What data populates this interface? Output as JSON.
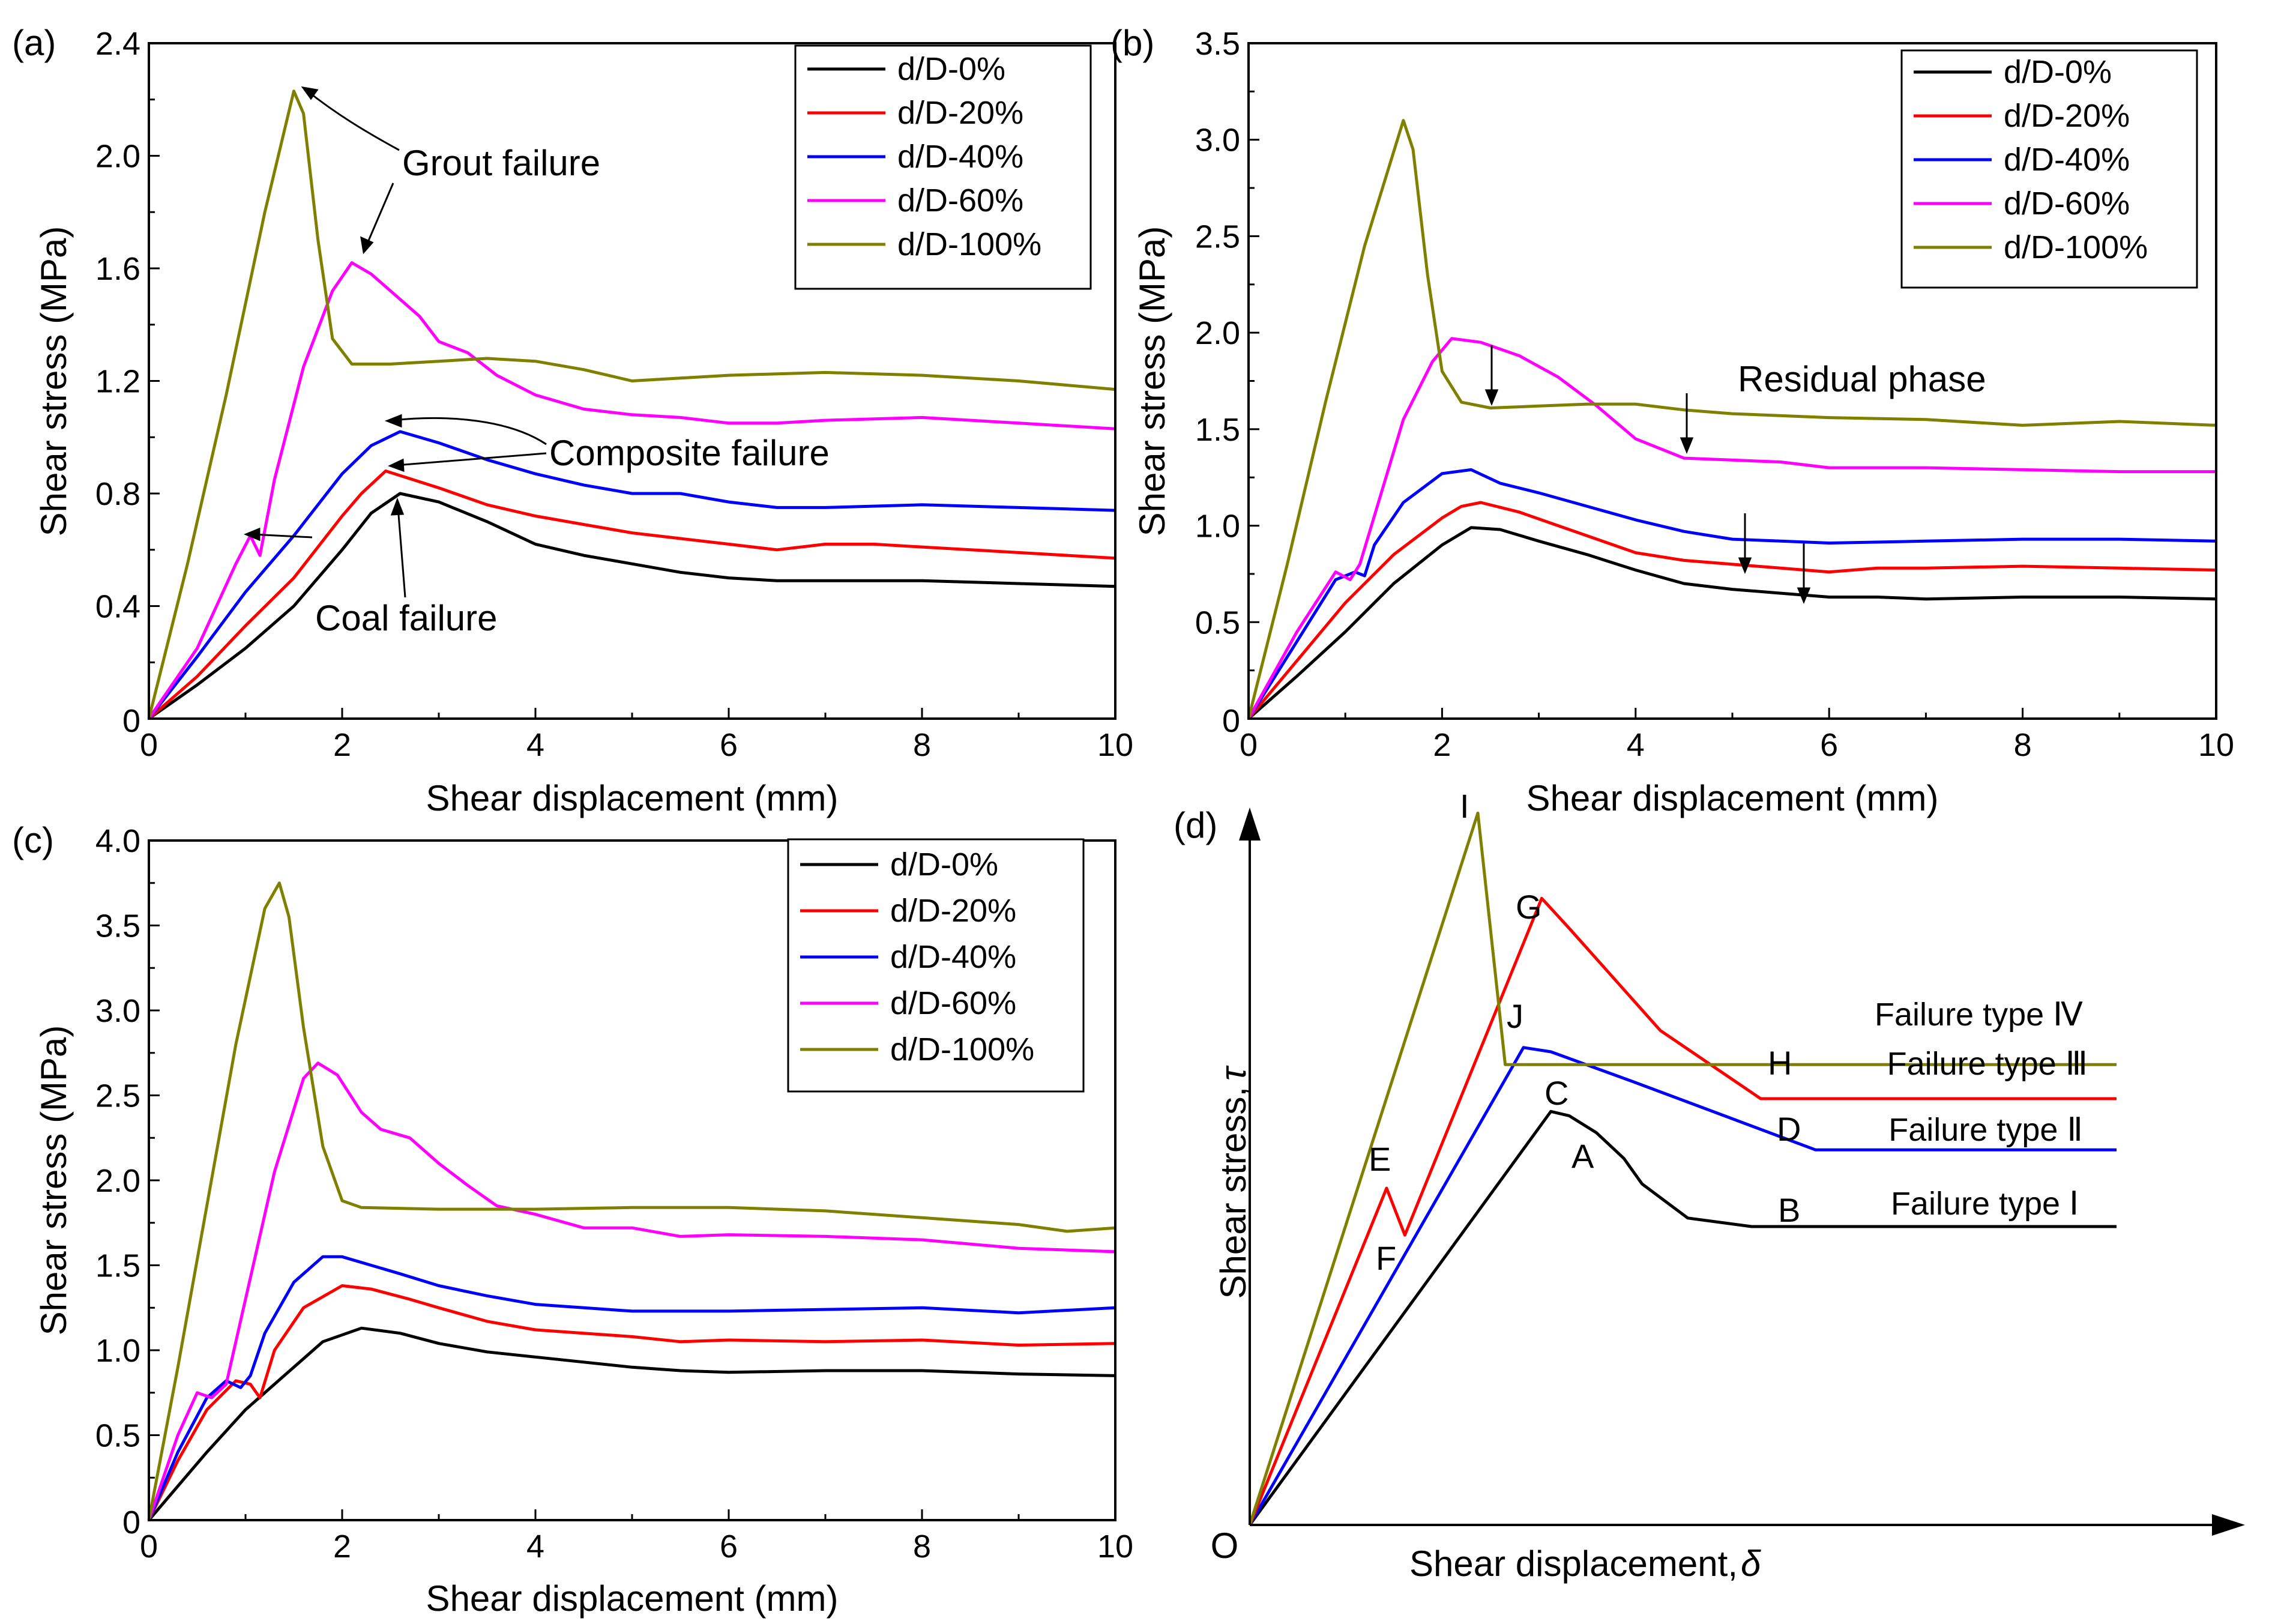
{
  "chart_data": [
    {
      "type": "line",
      "panel_label": "(a)",
      "xlabel": "Shear displacement (mm)",
      "ylabel": "Shear stress (MPa)",
      "xlim": [
        0,
        10
      ],
      "ylim": [
        0,
        2.4
      ],
      "xticks": [
        0,
        2,
        4,
        6,
        8,
        10
      ],
      "yticks": [
        0.4,
        0.8,
        1.2,
        1.6,
        2.0,
        2.4
      ],
      "grid": false,
      "legend_position": "top-right",
      "series": [
        {
          "name": "d/D-0%",
          "color": "#000000",
          "x": [
            0,
            0.5,
            1,
            1.5,
            2,
            2.3,
            2.6,
            3,
            3.5,
            4,
            4.5,
            5,
            5.5,
            6,
            6.5,
            7,
            8,
            9,
            10
          ],
          "y": [
            0,
            0.12,
            0.25,
            0.4,
            0.6,
            0.73,
            0.8,
            0.77,
            0.7,
            0.62,
            0.58,
            0.55,
            0.52,
            0.5,
            0.49,
            0.49,
            0.49,
            0.48,
            0.47
          ]
        },
        {
          "name": "d/D-20%",
          "color": "#ff0000",
          "x": [
            0,
            0.5,
            1,
            1.5,
            2,
            2.2,
            2.45,
            3,
            3.5,
            4,
            4.5,
            5,
            5.5,
            6,
            6.5,
            7,
            7.5,
            8,
            9,
            10
          ],
          "y": [
            0,
            0.15,
            0.33,
            0.5,
            0.72,
            0.8,
            0.88,
            0.82,
            0.76,
            0.72,
            0.69,
            0.66,
            0.64,
            0.62,
            0.6,
            0.62,
            0.62,
            0.61,
            0.59,
            0.57
          ]
        },
        {
          "name": "d/D-40%",
          "color": "#0000ff",
          "x": [
            0,
            0.5,
            1,
            1.5,
            2,
            2.3,
            2.6,
            3,
            3.5,
            4,
            4.5,
            5,
            5.5,
            6,
            6.5,
            7,
            8,
            9,
            10
          ],
          "y": [
            0,
            0.22,
            0.45,
            0.65,
            0.87,
            0.97,
            1.02,
            0.98,
            0.92,
            0.87,
            0.83,
            0.8,
            0.8,
            0.77,
            0.75,
            0.75,
            0.76,
            0.75,
            0.74
          ]
        },
        {
          "name": "d/D-60%",
          "color": "#ff00ff",
          "x": [
            0,
            0.5,
            0.9,
            1.05,
            1.15,
            1.3,
            1.6,
            1.9,
            2.1,
            2.3,
            2.5,
            2.8,
            3,
            3.3,
            3.6,
            4,
            4.5,
            5,
            5.5,
            6,
            6.5,
            7,
            8,
            9,
            10
          ],
          "y": [
            0,
            0.25,
            0.55,
            0.65,
            0.58,
            0.85,
            1.25,
            1.52,
            1.62,
            1.58,
            1.52,
            1.43,
            1.34,
            1.3,
            1.22,
            1.15,
            1.1,
            1.08,
            1.07,
            1.05,
            1.05,
            1.06,
            1.07,
            1.05,
            1.03
          ]
        },
        {
          "name": "d/D-100%",
          "color": "#808000",
          "x": [
            0,
            0.4,
            0.8,
            1.2,
            1.5,
            1.6,
            1.75,
            1.9,
            2.1,
            2.5,
            3,
            3.5,
            4,
            4.5,
            5,
            5.5,
            6,
            7,
            8,
            9,
            10
          ],
          "y": [
            0,
            0.55,
            1.15,
            1.8,
            2.23,
            2.15,
            1.7,
            1.35,
            1.26,
            1.26,
            1.27,
            1.28,
            1.27,
            1.24,
            1.2,
            1.21,
            1.22,
            1.23,
            1.22,
            1.2,
            1.17
          ]
        }
      ],
      "annotations": [
        "Grout failure",
        "Composite failure",
        "Coal failure"
      ]
    },
    {
      "type": "line",
      "panel_label": "(b)",
      "xlabel": "Shear displacement (mm)",
      "ylabel": "Shear stress (MPa)",
      "xlim": [
        0,
        10
      ],
      "ylim": [
        0,
        3.5
      ],
      "xticks": [
        0,
        2,
        4,
        6,
        8,
        10
      ],
      "yticks": [
        0.5,
        1.0,
        1.5,
        2.0,
        2.5,
        3.0,
        3.5
      ],
      "grid": false,
      "legend_position": "top-right",
      "series": [
        {
          "name": "d/D-0%",
          "color": "#000000",
          "x": [
            0,
            0.5,
            1,
            1.5,
            2,
            2.3,
            2.6,
            3,
            3.5,
            4,
            4.5,
            5,
            5.5,
            6,
            6.5,
            7,
            8,
            9,
            10
          ],
          "y": [
            0,
            0.22,
            0.45,
            0.7,
            0.9,
            0.99,
            0.98,
            0.92,
            0.85,
            0.77,
            0.7,
            0.67,
            0.65,
            0.63,
            0.63,
            0.62,
            0.63,
            0.63,
            0.62
          ]
        },
        {
          "name": "d/D-20%",
          "color": "#ff0000",
          "x": [
            0,
            0.5,
            1,
            1.5,
            2,
            2.2,
            2.4,
            2.8,
            3.2,
            3.6,
            4,
            4.5,
            5,
            5.5,
            6,
            6.5,
            7,
            8,
            9,
            10
          ],
          "y": [
            0,
            0.3,
            0.6,
            0.85,
            1.04,
            1.1,
            1.12,
            1.07,
            1.0,
            0.93,
            0.86,
            0.82,
            0.8,
            0.78,
            0.76,
            0.78,
            0.78,
            0.79,
            0.78,
            0.77
          ]
        },
        {
          "name": "d/D-40%",
          "color": "#0000ff",
          "x": [
            0,
            0.5,
            0.9,
            1.1,
            1.2,
            1.3,
            1.6,
            2,
            2.3,
            2.6,
            3,
            3.5,
            4,
            4.5,
            5,
            5.5,
            6,
            7,
            8,
            9,
            10
          ],
          "y": [
            0,
            0.4,
            0.72,
            0.76,
            0.74,
            0.9,
            1.12,
            1.27,
            1.29,
            1.22,
            1.17,
            1.1,
            1.03,
            0.97,
            0.93,
            0.92,
            0.91,
            0.92,
            0.93,
            0.93,
            0.92
          ]
        },
        {
          "name": "d/D-60%",
          "color": "#ff00ff",
          "x": [
            0,
            0.5,
            0.9,
            1.05,
            1.15,
            1.3,
            1.6,
            1.9,
            2.1,
            2.4,
            2.8,
            3.2,
            3.6,
            4,
            4.5,
            5,
            5.5,
            6,
            7,
            8,
            9,
            10
          ],
          "y": [
            0,
            0.45,
            0.76,
            0.72,
            0.8,
            1.05,
            1.55,
            1.85,
            1.97,
            1.95,
            1.88,
            1.77,
            1.62,
            1.45,
            1.35,
            1.34,
            1.33,
            1.3,
            1.3,
            1.29,
            1.28,
            1.28
          ]
        },
        {
          "name": "d/D-100%",
          "color": "#808000",
          "x": [
            0,
            0.4,
            0.8,
            1.2,
            1.6,
            1.7,
            1.85,
            2,
            2.2,
            2.5,
            3,
            3.5,
            4,
            4.5,
            5,
            6,
            7,
            8,
            9,
            10
          ],
          "y": [
            0,
            0.8,
            1.65,
            2.45,
            3.1,
            2.95,
            2.3,
            1.8,
            1.64,
            1.61,
            1.62,
            1.63,
            1.63,
            1.6,
            1.58,
            1.56,
            1.55,
            1.52,
            1.54,
            1.52
          ]
        }
      ],
      "annotations": [
        "Residual phase"
      ]
    },
    {
      "type": "line",
      "panel_label": "(c)",
      "xlabel": "Shear displacement (mm)",
      "ylabel": "Shear stress (MPa)",
      "xlim": [
        0,
        10
      ],
      "ylim": [
        0,
        4.0
      ],
      "xticks": [
        0,
        2,
        4,
        6,
        8,
        10
      ],
      "yticks": [
        0.5,
        1.0,
        1.5,
        2.0,
        2.5,
        3.0,
        3.5,
        4.0
      ],
      "grid": false,
      "legend_position": "top-right",
      "series": [
        {
          "name": "d/D-0%",
          "color": "#000000",
          "x": [
            0,
            0.3,
            0.6,
            1,
            1.4,
            1.8,
            2.2,
            2.6,
            3,
            3.5,
            4,
            4.5,
            5,
            5.5,
            6,
            7,
            8,
            9,
            10
          ],
          "y": [
            0,
            0.2,
            0.4,
            0.65,
            0.85,
            1.05,
            1.13,
            1.1,
            1.04,
            0.99,
            0.96,
            0.93,
            0.9,
            0.88,
            0.87,
            0.88,
            0.88,
            0.86,
            0.85
          ]
        },
        {
          "name": "d/D-20%",
          "color": "#ff0000",
          "x": [
            0,
            0.3,
            0.6,
            0.9,
            1.05,
            1.15,
            1.3,
            1.6,
            2,
            2.3,
            2.7,
            3,
            3.5,
            4,
            4.5,
            5,
            5.5,
            6,
            7,
            8,
            9,
            10
          ],
          "y": [
            0,
            0.35,
            0.65,
            0.82,
            0.8,
            0.72,
            1.0,
            1.25,
            1.38,
            1.36,
            1.3,
            1.25,
            1.17,
            1.12,
            1.1,
            1.08,
            1.05,
            1.06,
            1.05,
            1.06,
            1.03,
            1.04
          ]
        },
        {
          "name": "d/D-40%",
          "color": "#0000ff",
          "x": [
            0,
            0.3,
            0.6,
            0.8,
            0.95,
            1.05,
            1.2,
            1.5,
            1.8,
            2,
            2.3,
            2.6,
            3,
            3.5,
            4,
            4.5,
            5,
            6,
            7,
            8,
            9,
            10
          ],
          "y": [
            0,
            0.4,
            0.72,
            0.82,
            0.78,
            0.85,
            1.1,
            1.4,
            1.55,
            1.55,
            1.5,
            1.45,
            1.38,
            1.32,
            1.27,
            1.25,
            1.23,
            1.23,
            1.24,
            1.25,
            1.22,
            1.25
          ]
        },
        {
          "name": "d/D-60%",
          "color": "#ff00ff",
          "x": [
            0,
            0.3,
            0.5,
            0.65,
            0.8,
            1,
            1.3,
            1.6,
            1.75,
            1.95,
            2.2,
            2.4,
            2.7,
            3,
            3.3,
            3.6,
            4,
            4.5,
            5,
            5.5,
            6,
            7,
            8,
            9,
            10
          ],
          "y": [
            0,
            0.5,
            0.75,
            0.72,
            0.8,
            1.3,
            2.05,
            2.6,
            2.69,
            2.62,
            2.4,
            2.3,
            2.25,
            2.1,
            1.97,
            1.85,
            1.8,
            1.72,
            1.72,
            1.67,
            1.68,
            1.67,
            1.65,
            1.6,
            1.58
          ]
        },
        {
          "name": "d/D-100%",
          "color": "#808000",
          "x": [
            0,
            0.3,
            0.6,
            0.9,
            1.2,
            1.35,
            1.45,
            1.6,
            1.8,
            2,
            2.2,
            3,
            4,
            5,
            6,
            7,
            8,
            9,
            9.5,
            10
          ],
          "y": [
            0,
            0.9,
            1.85,
            2.8,
            3.6,
            3.75,
            3.55,
            2.9,
            2.2,
            1.88,
            1.84,
            1.83,
            1.83,
            1.84,
            1.84,
            1.82,
            1.78,
            1.74,
            1.7,
            1.72
          ]
        }
      ]
    },
    {
      "type": "line",
      "panel_label": "(d)",
      "xlabel": "Shear displacement, ",
      "xlabel_symbol": "δ",
      "ylabel": "Shear stress, ",
      "ylabel_symbol": "τ",
      "origin_label": "O",
      "schematic": true,
      "series": [
        {
          "name": "Failure type Ⅰ",
          "color": "#000000",
          "x": [
            0,
            3.3,
            3.5,
            3.8,
            4.1,
            4.3,
            4.8,
            5.5,
            6.4,
            9.5
          ],
          "y": [
            0,
            4.85,
            4.8,
            4.6,
            4.3,
            4.0,
            3.6,
            3.5,
            3.5,
            3.5
          ]
        },
        {
          "name": "Failure type Ⅱ",
          "color": "#0000ff",
          "x": [
            0,
            3.0,
            3.3,
            4.2,
            5.2,
            6.2,
            9.5
          ],
          "y": [
            0,
            5.6,
            5.55,
            5.2,
            4.8,
            4.4,
            4.4
          ]
        },
        {
          "name": "Failure type Ⅲ",
          "color": "#ff0000",
          "x": [
            0,
            1.5,
            1.7,
            3.2,
            3.5,
            4.5,
            5.6,
            9.5
          ],
          "y": [
            0,
            3.95,
            3.4,
            7.35,
            7.0,
            5.8,
            5.0,
            5.0
          ]
        },
        {
          "name": "Failure type Ⅳ",
          "color": "#808000",
          "x": [
            0,
            2.5,
            2.8,
            9.5
          ],
          "y": [
            0,
            8.35,
            5.4,
            5.4
          ]
        }
      ],
      "point_labels": [
        "A",
        "B",
        "C",
        "D",
        "E",
        "F",
        "G",
        "H",
        "I",
        "J"
      ],
      "type_labels": [
        "Failure type Ⅰ",
        "Failure type Ⅱ",
        "Failure type Ⅲ",
        "Failure type Ⅳ"
      ]
    }
  ]
}
